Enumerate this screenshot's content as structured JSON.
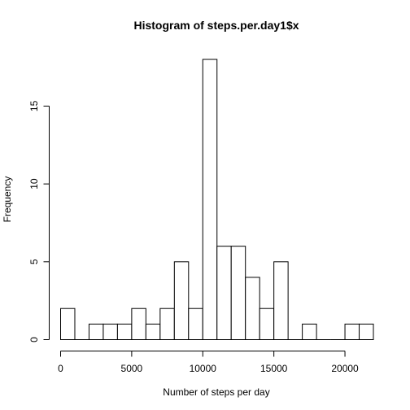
{
  "chart_data": {
    "type": "bar",
    "title": "Histogram of steps.per.day1$x",
    "xlabel": "Number of steps per day",
    "ylabel": "Frequency",
    "bin_width": 1000,
    "bins": [
      {
        "start": 0,
        "end": 1000,
        "count": 2
      },
      {
        "start": 1000,
        "end": 2000,
        "count": 0
      },
      {
        "start": 2000,
        "end": 3000,
        "count": 1
      },
      {
        "start": 3000,
        "end": 4000,
        "count": 1
      },
      {
        "start": 4000,
        "end": 5000,
        "count": 1
      },
      {
        "start": 5000,
        "end": 6000,
        "count": 2
      },
      {
        "start": 6000,
        "end": 7000,
        "count": 1
      },
      {
        "start": 7000,
        "end": 8000,
        "count": 2
      },
      {
        "start": 8000,
        "end": 9000,
        "count": 5
      },
      {
        "start": 9000,
        "end": 10000,
        "count": 2
      },
      {
        "start": 10000,
        "end": 11000,
        "count": 18
      },
      {
        "start": 11000,
        "end": 12000,
        "count": 6
      },
      {
        "start": 12000,
        "end": 13000,
        "count": 6
      },
      {
        "start": 13000,
        "end": 14000,
        "count": 4
      },
      {
        "start": 14000,
        "end": 15000,
        "count": 2
      },
      {
        "start": 15000,
        "end": 16000,
        "count": 5
      },
      {
        "start": 16000,
        "end": 17000,
        "count": 0
      },
      {
        "start": 17000,
        "end": 18000,
        "count": 1
      },
      {
        "start": 18000,
        "end": 19000,
        "count": 0
      },
      {
        "start": 19000,
        "end": 20000,
        "count": 0
      },
      {
        "start": 20000,
        "end": 21000,
        "count": 1
      },
      {
        "start": 21000,
        "end": 22000,
        "count": 1
      }
    ],
    "x_ticks": [
      0,
      5000,
      10000,
      15000,
      20000
    ],
    "y_ticks": [
      0,
      5,
      10,
      15
    ],
    "xlim": [
      0,
      22000
    ],
    "ylim": [
      0,
      18
    ],
    "grid": false,
    "bar_fill": "#ffffff",
    "bar_stroke": "#000000"
  }
}
